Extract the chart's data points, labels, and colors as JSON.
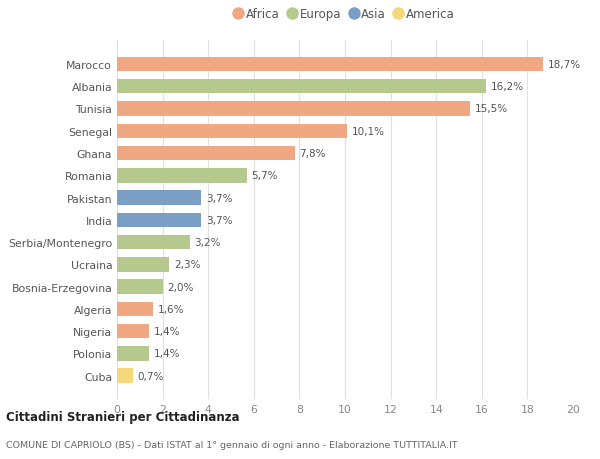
{
  "countries": [
    "Marocco",
    "Albania",
    "Tunisia",
    "Senegal",
    "Ghana",
    "Romania",
    "Pakistan",
    "India",
    "Serbia/Montenegro",
    "Ucraina",
    "Bosnia-Erzegovina",
    "Algeria",
    "Nigeria",
    "Polonia",
    "Cuba"
  ],
  "values": [
    18.7,
    16.2,
    15.5,
    10.1,
    7.8,
    5.7,
    3.7,
    3.7,
    3.2,
    2.3,
    2.0,
    1.6,
    1.4,
    1.4,
    0.7
  ],
  "labels": [
    "18,7%",
    "16,2%",
    "15,5%",
    "10,1%",
    "7,8%",
    "5,7%",
    "3,7%",
    "3,7%",
    "3,2%",
    "2,3%",
    "2,0%",
    "1,6%",
    "1,4%",
    "1,4%",
    "0,7%"
  ],
  "continents": [
    "Africa",
    "Europa",
    "Africa",
    "Africa",
    "Africa",
    "Europa",
    "Asia",
    "Asia",
    "Europa",
    "Europa",
    "Europa",
    "Africa",
    "Africa",
    "Europa",
    "America"
  ],
  "colors": {
    "Africa": "#F0A882",
    "Europa": "#B5C98E",
    "Asia": "#7B9FC4",
    "America": "#F5D87A"
  },
  "legend_order": [
    "Africa",
    "Europa",
    "Asia",
    "America"
  ],
  "xlim": [
    0,
    20
  ],
  "xticks": [
    0,
    2,
    4,
    6,
    8,
    10,
    12,
    14,
    16,
    18,
    20
  ],
  "title": "Cittadini Stranieri per Cittadinanza",
  "subtitle": "COMUNE DI CAPRIOLO (BS) - Dati ISTAT al 1° gennaio di ogni anno - Elaborazione TUTTITALIA.IT",
  "background_color": "#ffffff",
  "grid_color": "#e0e0e0",
  "bar_height": 0.65
}
